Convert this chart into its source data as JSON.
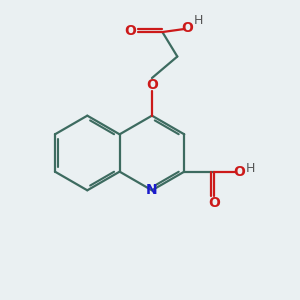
{
  "background_color": "#eaf0f2",
  "bond_color": "#3d6b60",
  "N_color": "#1a1acc",
  "O_color": "#cc1a1a",
  "H_color": "#555555",
  "line_width": 1.6,
  "dbo": 0.09,
  "figsize": [
    3.0,
    3.0
  ],
  "dpi": 100,
  "xlim": [
    0,
    10
  ],
  "ylim": [
    0,
    10
  ]
}
